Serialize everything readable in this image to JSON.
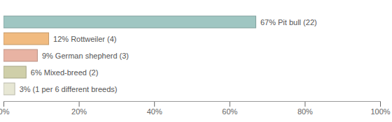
{
  "chart_data": {
    "type": "bar",
    "orientation": "horizontal",
    "categories": [
      null,
      null,
      null,
      null,
      null
    ],
    "values": [
      67,
      12,
      9,
      6,
      3
    ],
    "value_labels": [
      "67% Pit bull (22)",
      "12% Rottweiler (4)",
      "9% German shepherd (3)",
      "6% Mixed-breed (2)",
      "3% (1 per 6 different breeds)"
    ],
    "colors": [
      "#9fc6c2",
      "#f1bb80",
      "#e8b3a3",
      "#cfcfa9",
      "#e7e7d4"
    ],
    "xlim": [
      0,
      100
    ],
    "xticks": [
      {
        "value": 0,
        "label": "0%"
      },
      {
        "value": 20,
        "label": "20%"
      },
      {
        "value": 40,
        "label": "40%"
      },
      {
        "value": 60,
        "label": "60%"
      },
      {
        "value": 80,
        "label": "80%"
      },
      {
        "value": 100,
        "label": "100%"
      }
    ],
    "data_labels": true,
    "tick_labels": "x",
    "grid": false
  }
}
